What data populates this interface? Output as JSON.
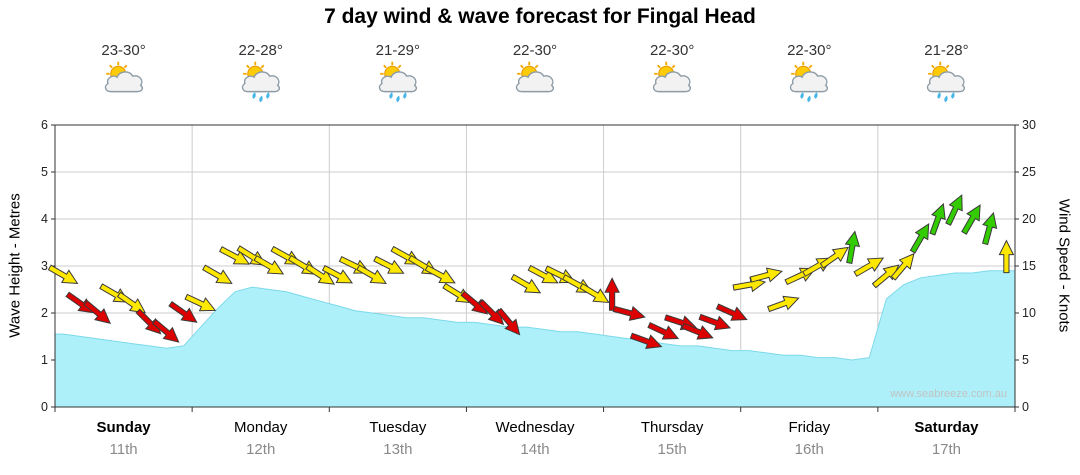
{
  "title": "7 day wind & wave forecast for Fingal Head",
  "watermark": "www.seabreeze.com.au",
  "colors": {
    "wave_fill": "#AEF0FA",
    "wave_edge": "#7BD9EA",
    "wind_yellow": "#FFE800",
    "wind_red": "#DD0000",
    "wind_green": "#33CC00",
    "grid": "#CCCCCC",
    "frame": "#333333",
    "temp_text": "#333333",
    "date_text": "#8A8A8A"
  },
  "days": [
    {
      "name": "Sunday",
      "date": "11th",
      "temp": "23-30°",
      "icon": "sun-cloud",
      "bold": true
    },
    {
      "name": "Monday",
      "date": "12th",
      "temp": "22-28°",
      "icon": "sun-cloud-rain",
      "bold": false
    },
    {
      "name": "Tuesday",
      "date": "13th",
      "temp": "21-29°",
      "icon": "sun-cloud-rain",
      "bold": false
    },
    {
      "name": "Wednesday",
      "date": "14th",
      "temp": "22-30°",
      "icon": "sun-cloud",
      "bold": false
    },
    {
      "name": "Thursday",
      "date": "15th",
      "temp": "22-30°",
      "icon": "sun-cloud",
      "bold": false
    },
    {
      "name": "Friday",
      "date": "16th",
      "temp": "22-30°",
      "icon": "sun-cloud-rain",
      "bold": false
    },
    {
      "name": "Saturday",
      "date": "17th",
      "temp": "21-28°",
      "icon": "sun-cloud-rain",
      "bold": true
    }
  ],
  "chart_data": {
    "type": "area+wind-barbs",
    "left_axis_label": "Wave Height - Metres",
    "right_axis_label": "Wind Speed - Knots",
    "wave_axis_ticks": [
      0,
      1,
      2,
      3,
      4,
      5,
      6
    ],
    "wind_axis_ticks": [
      0,
      5,
      10,
      15,
      20,
      25,
      30
    ],
    "wave_axis_max": 6,
    "wind_axis_max": 30,
    "points_per_day": 8,
    "wave_height_m": [
      1.55,
      1.5,
      1.45,
      1.4,
      1.35,
      1.3,
      1.25,
      1.3,
      1.7,
      2.1,
      2.45,
      2.55,
      2.5,
      2.45,
      2.35,
      2.25,
      2.15,
      2.05,
      2.0,
      1.95,
      1.9,
      1.9,
      1.85,
      1.8,
      1.8,
      1.75,
      1.7,
      1.7,
      1.65,
      1.6,
      1.6,
      1.55,
      1.5,
      1.45,
      1.4,
      1.35,
      1.3,
      1.3,
      1.25,
      1.2,
      1.2,
      1.15,
      1.1,
      1.1,
      1.05,
      1.05,
      1.0,
      1.05,
      2.3,
      2.6,
      2.75,
      2.8,
      2.85,
      2.85,
      2.9,
      2.9
    ],
    "wind_kn": [
      14,
      11,
      10,
      12,
      11,
      9,
      8,
      10,
      11,
      14,
      16,
      16,
      15,
      16,
      15,
      14,
      14,
      15,
      14,
      15,
      16,
      15,
      14,
      12,
      11,
      10,
      9,
      13,
      14,
      14,
      13,
      12,
      12,
      10,
      7,
      8,
      9,
      8,
      9,
      10,
      13,
      14,
      11,
      14,
      15,
      16,
      17,
      15,
      14,
      15,
      18,
      20,
      21,
      20,
      19,
      16
    ],
    "wind_dir_deg": [
      30,
      35,
      40,
      30,
      35,
      45,
      40,
      35,
      25,
      30,
      28,
      32,
      30,
      29,
      31,
      33,
      28,
      26,
      30,
      27,
      29,
      31,
      28,
      32,
      40,
      45,
      50,
      30,
      28,
      26,
      29,
      31,
      -90,
      15,
      20,
      25,
      18,
      22,
      20,
      24,
      -10,
      -15,
      -20,
      -25,
      -30,
      -35,
      -80,
      -30,
      -40,
      -50,
      -60,
      -70,
      -65,
      -60,
      -75,
      -90
    ],
    "wind_level": [
      "yellow",
      "red",
      "red",
      "yellow",
      "yellow",
      "red",
      "red",
      "red",
      "yellow",
      "yellow",
      "yellow",
      "yellow",
      "yellow",
      "yellow",
      "yellow",
      "yellow",
      "yellow",
      "yellow",
      "yellow",
      "yellow",
      "yellow",
      "yellow",
      "yellow",
      "yellow",
      "red",
      "red",
      "red",
      "yellow",
      "yellow",
      "yellow",
      "yellow",
      "yellow",
      "red",
      "red",
      "red",
      "red",
      "red",
      "red",
      "red",
      "red",
      "yellow",
      "yellow",
      "yellow",
      "yellow",
      "yellow",
      "yellow",
      "green",
      "yellow",
      "yellow",
      "yellow",
      "green",
      "green",
      "green",
      "green",
      "green",
      "yellow"
    ]
  }
}
